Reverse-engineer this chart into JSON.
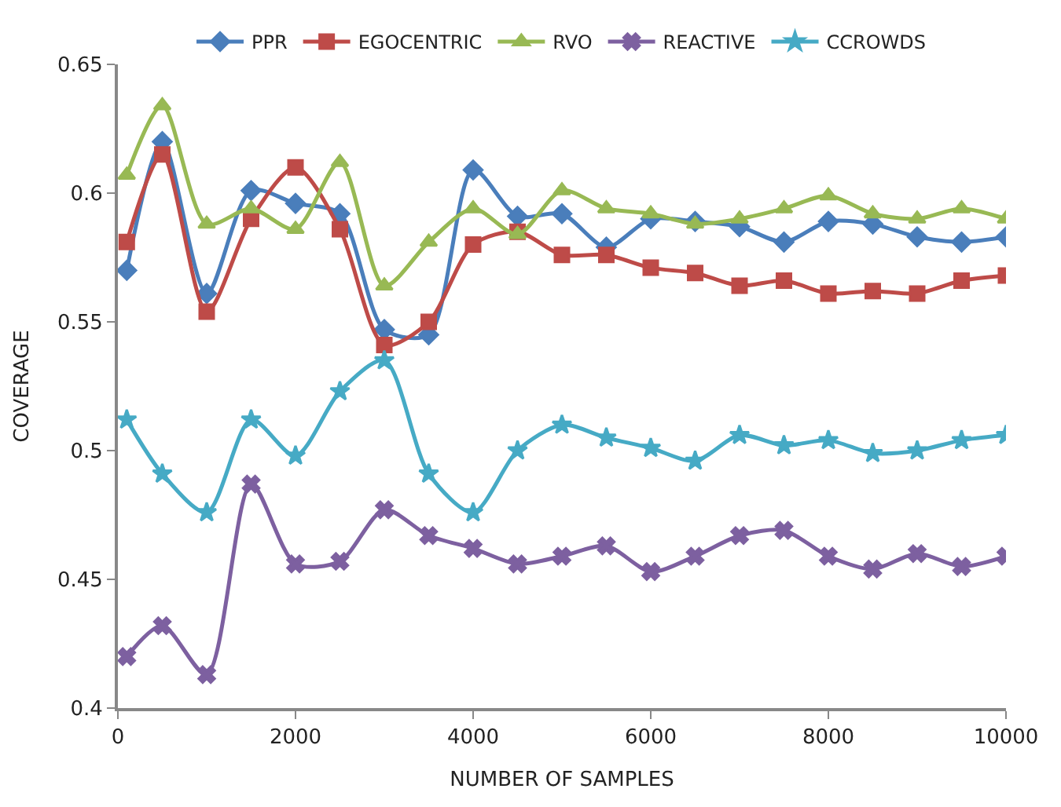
{
  "chart_data": {
    "type": "line",
    "xlabel": "NUMBER OF SAMPLES",
    "ylabel": "COVERAGE",
    "x": [
      100,
      500,
      1000,
      1500,
      2000,
      2500,
      3000,
      3500,
      4000,
      4500,
      5000,
      5500,
      6000,
      6500,
      7000,
      7500,
      8000,
      8500,
      9000,
      9500,
      10000
    ],
    "xlim": [
      0,
      10000
    ],
    "xticks": [
      0,
      2000,
      4000,
      6000,
      8000,
      10000
    ],
    "ylim": [
      0.4,
      0.65
    ],
    "yticks": [
      0.4,
      0.45,
      0.5,
      0.55,
      0.6,
      0.65
    ],
    "legend": "top",
    "line_style": "solid",
    "series": [
      {
        "name": "PPR",
        "color": "#4a7ebb",
        "marker": "diamond",
        "values": [
          0.57,
          0.62,
          0.561,
          0.601,
          0.596,
          0.592,
          0.547,
          0.545,
          0.609,
          0.591,
          0.592,
          0.579,
          0.59,
          0.589,
          0.587,
          0.581,
          0.589,
          0.588,
          0.583,
          0.581,
          0.583
        ]
      },
      {
        "name": "EGOCENTRIC",
        "color": "#be4b48",
        "marker": "square",
        "values": [
          0.581,
          0.615,
          0.554,
          0.59,
          0.61,
          0.586,
          0.541,
          0.55,
          0.58,
          0.585,
          0.576,
          0.576,
          0.571,
          0.569,
          0.564,
          0.566,
          0.561,
          0.562,
          0.561,
          0.566,
          0.568
        ]
      },
      {
        "name": "RVO",
        "color": "#98b954",
        "marker": "triangle",
        "values": [
          0.607,
          0.634,
          0.588,
          0.594,
          0.586,
          0.612,
          0.564,
          0.581,
          0.594,
          0.584,
          0.601,
          0.594,
          0.592,
          0.588,
          0.59,
          0.594,
          0.599,
          0.592,
          0.59,
          0.594,
          0.59
        ]
      },
      {
        "name": "REACTIVE",
        "color": "#7d60a0",
        "marker": "cross",
        "values": [
          0.42,
          0.432,
          0.413,
          0.487,
          0.456,
          0.457,
          0.477,
          0.467,
          0.462,
          0.456,
          0.459,
          0.463,
          0.453,
          0.459,
          0.467,
          0.469,
          0.459,
          0.454,
          0.46,
          0.455,
          0.459
        ]
      },
      {
        "name": "CCROWDS",
        "color": "#46aac5",
        "marker": "star",
        "values": [
          0.512,
          0.491,
          0.476,
          0.512,
          0.498,
          0.523,
          0.535,
          0.491,
          0.476,
          0.5,
          0.51,
          0.505,
          0.501,
          0.496,
          0.506,
          0.502,
          0.504,
          0.499,
          0.5,
          0.504,
          0.506
        ]
      }
    ]
  }
}
